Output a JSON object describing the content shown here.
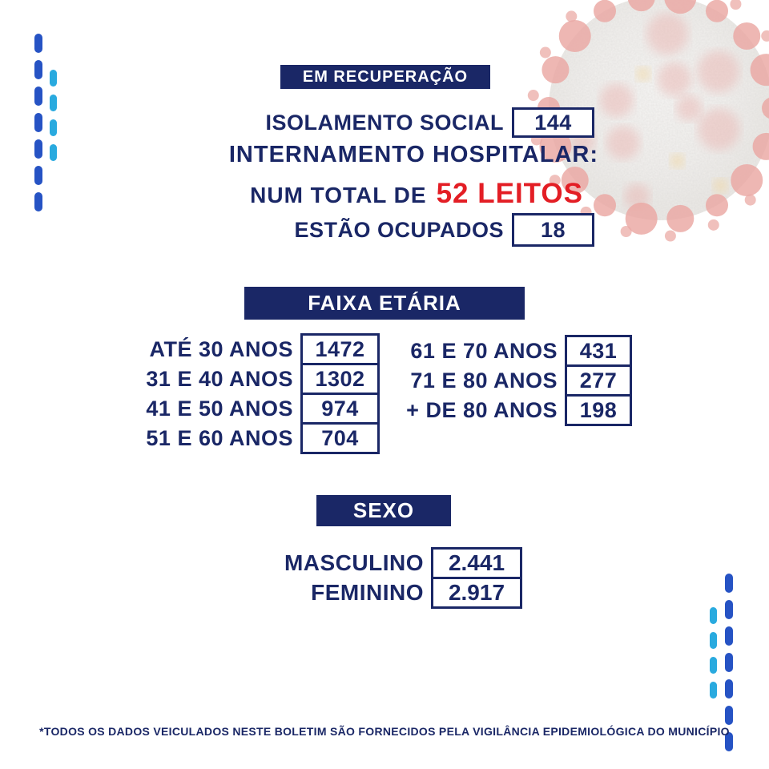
{
  "colors": {
    "navy": "#1a2766",
    "red": "#e31e25",
    "dash_dark": "#2653c4",
    "dash_light": "#29aadf",
    "virus_red": "#d9655d",
    "virus_yellow": "#e8b44a",
    "virus_body": "#e9e6e2"
  },
  "recovery": {
    "banner": "EM RECUPERAÇÃO",
    "isolation_label": "ISOLAMENTO SOCIAL",
    "isolation_value": "144",
    "hospital_heading": "INTERNAMENTO HOSPITALAR:",
    "total_prefix": "NUM TOTAL DE",
    "total_highlight": "52 LEITOS",
    "occupied_label": "ESTÃO OCUPADOS",
    "occupied_value": "18"
  },
  "age": {
    "banner": "FAIXA ETÁRIA",
    "left": [
      {
        "label": "ATÉ 30 ANOS",
        "value": "1472"
      },
      {
        "label": "31 E 40 ANOS",
        "value": "1302"
      },
      {
        "label": "41 E 50 ANOS",
        "value": "974"
      },
      {
        "label": "51 E 60 ANOS",
        "value": "704"
      }
    ],
    "right": [
      {
        "label": "61 E 70 ANOS",
        "value": "431"
      },
      {
        "label": "71 E 80 ANOS",
        "value": "277"
      },
      {
        "label": "+ DE 80 ANOS",
        "value": "198"
      }
    ]
  },
  "sex": {
    "banner": "SEXO",
    "rows": [
      {
        "label": "MASCULINO",
        "value": "2.441"
      },
      {
        "label": "FEMININO",
        "value": "2.917"
      }
    ]
  },
  "footer": {
    "note": "*TODOS OS DADOS VEICULADOS NESTE BOLETIM SÃO FORNECIDOS PELA VIGILÂNCIA EPIDEMIOLÓGICA DO MUNICÍPIO"
  }
}
